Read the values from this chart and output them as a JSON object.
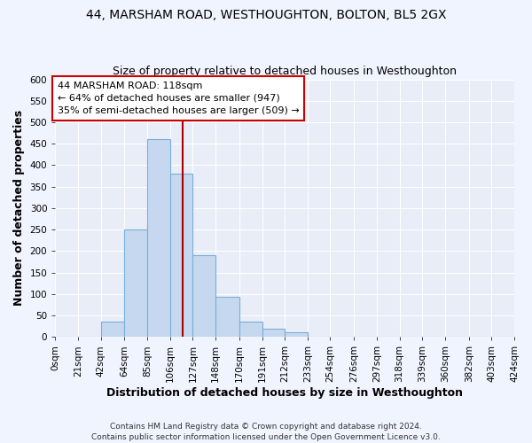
{
  "title": "44, MARSHAM ROAD, WESTHOUGHTON, BOLTON, BL5 2GX",
  "subtitle": "Size of property relative to detached houses in Westhoughton",
  "xlabel": "Distribution of detached houses by size in Westhoughton",
  "ylabel": "Number of detached properties",
  "bar_edges": [
    0,
    21,
    42,
    64,
    85,
    106,
    127,
    148,
    170,
    191,
    212,
    233,
    254,
    276,
    297,
    318,
    339,
    360,
    382,
    403,
    424
  ],
  "bar_heights": [
    0,
    0,
    35,
    250,
    460,
    380,
    190,
    93,
    35,
    20,
    10,
    0,
    0,
    0,
    0,
    0,
    0,
    0,
    0,
    0
  ],
  "bar_color": "#c5d8f0",
  "bar_edge_color": "#7bafd4",
  "ylim": [
    0,
    600
  ],
  "yticks": [
    0,
    50,
    100,
    150,
    200,
    250,
    300,
    350,
    400,
    450,
    500,
    550,
    600
  ],
  "tick_labels": [
    "0sqm",
    "21sqm",
    "42sqm",
    "64sqm",
    "85sqm",
    "106sqm",
    "127sqm",
    "148sqm",
    "170sqm",
    "191sqm",
    "212sqm",
    "233sqm",
    "254sqm",
    "276sqm",
    "297sqm",
    "318sqm",
    "339sqm",
    "360sqm",
    "382sqm",
    "403sqm",
    "424sqm"
  ],
  "vline_x": 118,
  "vline_color": "#aa0000",
  "annotation_title": "44 MARSHAM ROAD: 118sqm",
  "annotation_line1": "← 64% of detached houses are smaller (947)",
  "annotation_line2": "35% of semi-detached houses are larger (509) →",
  "annotation_box_color": "#ffffff",
  "annotation_box_edge_color": "#cc0000",
  "footer1": "Contains HM Land Registry data © Crown copyright and database right 2024.",
  "footer2": "Contains public sector information licensed under the Open Government Licence v3.0.",
  "bg_color": "#f0f4ff",
  "plot_bg_color": "#e8edf8",
  "grid_color": "#ffffff",
  "title_fontsize": 10,
  "subtitle_fontsize": 9,
  "axis_label_fontsize": 9,
  "tick_fontsize": 7.5,
  "annotation_fontsize": 8,
  "footer_fontsize": 6.5
}
